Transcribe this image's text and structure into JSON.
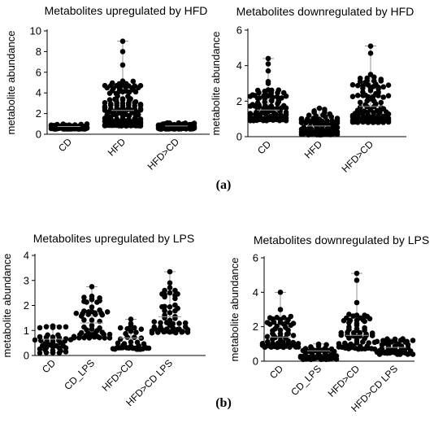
{
  "panel_labels": {
    "a": "(a)",
    "b": "(b)"
  },
  "chart_data": [
    {
      "type": "scatter",
      "title": "Metabolites upregulated by HFD",
      "ylabel": "metabolite abundance",
      "ylim": [
        0,
        10
      ],
      "yticks": [
        0,
        2,
        4,
        6,
        8,
        10
      ],
      "categories": [
        "CD",
        "HFD",
        "HFD>CD"
      ],
      "groups": [
        {
          "name": "CD",
          "min": 0.5,
          "max": 1.0,
          "median": 0.75,
          "n": 70,
          "seed": 11,
          "outliers": []
        },
        {
          "name": "HFD",
          "min": 0.8,
          "max": 9.0,
          "median": 2.3,
          "n": 120,
          "seed": 23,
          "outliers": [
            9.0,
            8.0,
            6.7,
            4.7,
            4.5,
            4.3,
            4.1
          ]
        },
        {
          "name": "HFD>CD",
          "min": 0.5,
          "max": 1.1,
          "median": 0.8,
          "n": 70,
          "seed": 37,
          "outliers": []
        }
      ]
    },
    {
      "type": "scatter",
      "title": "Metabolites downregulated by HFD",
      "ylabel": "metabolite abundance",
      "ylim": [
        0,
        6
      ],
      "yticks": [
        0,
        2,
        4,
        6
      ],
      "categories": [
        "CD",
        "HFD",
        "HFD>CD"
      ],
      "groups": [
        {
          "name": "CD",
          "min": 0.9,
          "max": 4.4,
          "median": 1.5,
          "n": 85,
          "seed": 41,
          "outliers": [
            4.4,
            4.1,
            3.7,
            3.1,
            3.0
          ]
        },
        {
          "name": "HFD",
          "min": 0.1,
          "max": 1.6,
          "median": 0.6,
          "n": 85,
          "seed": 53,
          "outliers": [
            1.6
          ]
        },
        {
          "name": "HFD>CD",
          "min": 0.8,
          "max": 5.1,
          "median": 1.7,
          "n": 100,
          "seed": 67,
          "outliers": [
            5.1,
            4.7,
            3.5,
            2.9
          ]
        }
      ]
    },
    {
      "type": "scatter",
      "title": "Metabolites upregulated by LPS",
      "ylabel": "metabolite abundance",
      "ylim": [
        0,
        4
      ],
      "yticks": [
        0,
        1,
        2,
        3,
        4
      ],
      "categories": [
        "CD",
        "CD_LPS",
        "HFD>CD",
        "HFD>CD LPS"
      ],
      "groups": [
        {
          "name": "CD",
          "min": 0.1,
          "max": 1.2,
          "median": 0.65,
          "n": 40,
          "seed": 71,
          "outliers": []
        },
        {
          "name": "CD_LPS",
          "min": 0.7,
          "max": 2.75,
          "median": 1.3,
          "n": 50,
          "seed": 83,
          "outliers": [
            2.75,
            2.3
          ]
        },
        {
          "name": "HFD>CD",
          "min": 0.25,
          "max": 1.45,
          "median": 0.7,
          "n": 40,
          "seed": 97,
          "outliers": [
            1.45
          ]
        },
        {
          "name": "HFD>CD LPS",
          "min": 0.9,
          "max": 3.35,
          "median": 1.55,
          "n": 50,
          "seed": 101,
          "outliers": [
            3.35,
            2.9,
            2.6
          ]
        }
      ]
    },
    {
      "type": "scatter",
      "title": "Metabolites downregulated by LPS",
      "ylabel": "metabolite abundance",
      "ylim": [
        0,
        6
      ],
      "yticks": [
        0,
        2,
        4,
        6
      ],
      "categories": [
        "CD",
        "CD_LPS",
        "HFD>CD",
        "HFD>CD LPS"
      ],
      "groups": [
        {
          "name": "CD",
          "min": 0.8,
          "max": 4.0,
          "median": 1.4,
          "n": 60,
          "seed": 113,
          "outliers": [
            4.0,
            3.0,
            2.6
          ]
        },
        {
          "name": "CD_LPS",
          "min": 0.1,
          "max": 1.0,
          "median": 0.6,
          "n": 45,
          "seed": 127,
          "outliers": []
        },
        {
          "name": "HFD>CD",
          "min": 0.7,
          "max": 5.1,
          "median": 1.5,
          "n": 60,
          "seed": 131,
          "outliers": [
            5.1,
            4.7,
            3.4,
            2.6
          ]
        },
        {
          "name": "HFD>CD LPS",
          "min": 0.4,
          "max": 1.3,
          "median": 0.8,
          "n": 45,
          "seed": 139,
          "outliers": []
        }
      ]
    }
  ]
}
